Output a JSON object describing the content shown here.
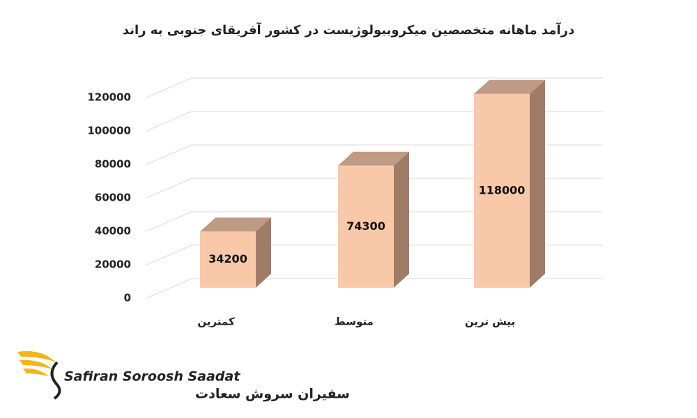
{
  "chart_data": {
    "type": "bar",
    "title": "درآمد ماهانه متخصصین میکروبیولوژیست در کشور آفریقای جنوبی به راند",
    "categories": [
      "کمترین",
      "متوسط",
      "بیش ترین"
    ],
    "values": [
      34200,
      74300,
      118000
    ],
    "color": "#f8c8a8",
    "ylim": [
      0,
      120000
    ],
    "yticks": [
      0,
      20000,
      40000,
      60000,
      80000,
      100000,
      120000
    ],
    "grid": true
  },
  "logo": {
    "name_en": "Safiran Soroosh Saadat",
    "name_fa": "سفیران سروش سعادت"
  }
}
